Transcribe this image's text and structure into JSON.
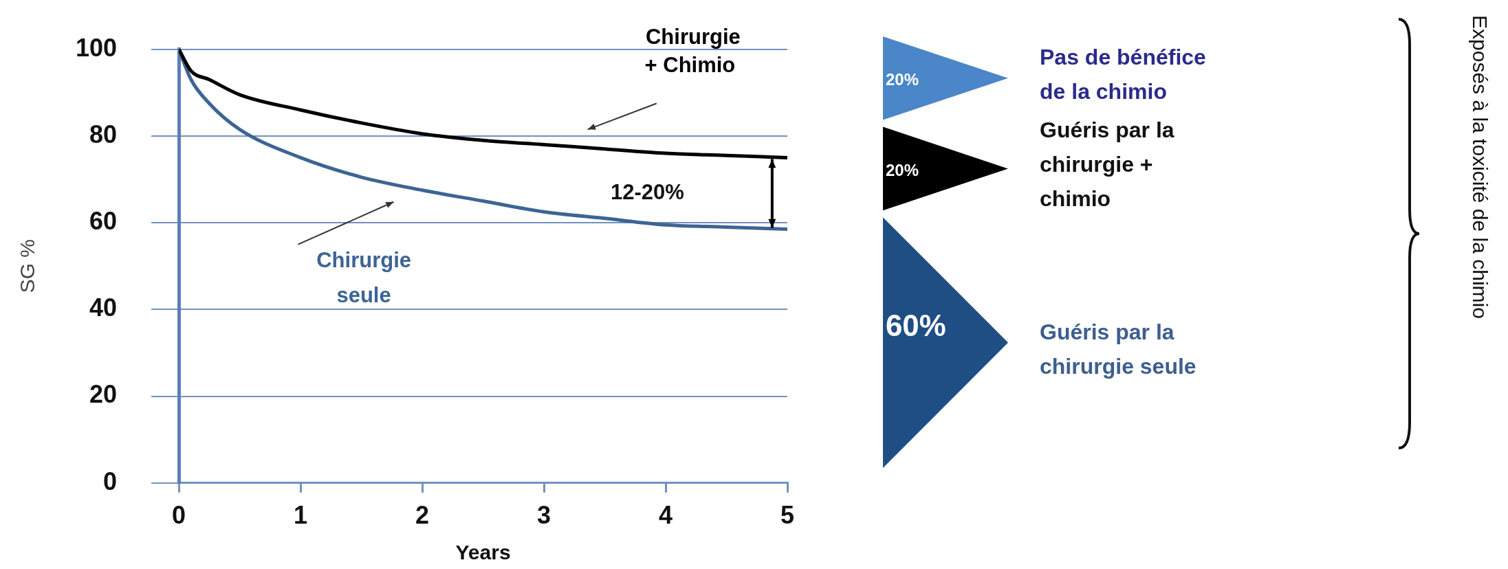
{
  "chart_data": [
    {
      "type": "line",
      "xlabel": "Years",
      "ylabel": "SG %",
      "x": [
        0,
        0.1,
        0.25,
        0.5,
        1,
        1.5,
        2,
        2.5,
        3,
        3.5,
        4,
        4.5,
        5
      ],
      "series": [
        {
          "name": "Chirurgie + Chimio",
          "color": "#000000",
          "values": [
            100,
            95,
            93,
            89.5,
            86,
            83,
            80.5,
            79,
            78,
            77,
            76,
            75.5,
            75
          ]
        },
        {
          "name": "Chirurgie seule",
          "color": "#3d6494",
          "values": [
            100,
            93,
            87.5,
            81.5,
            75,
            70.5,
            67.5,
            65,
            62.5,
            61,
            59.5,
            59,
            58.5
          ]
        }
      ],
      "xlim": [
        0,
        5
      ],
      "xticks": [
        0,
        1,
        2,
        3,
        4,
        5
      ],
      "ylim": [
        0,
        100
      ],
      "yticks": [
        0,
        20,
        40,
        60,
        80,
        100
      ],
      "grid": "y",
      "annotations": [
        "12-20%"
      ]
    },
    {
      "type": "other",
      "categories": [
        "Pas de bénéfice de la chimio",
        "Guéris par la chirurgie + chimio",
        "Guéris par la chirurgie seule"
      ],
      "values": [
        20,
        20,
        60
      ],
      "colors": [
        "#4a86c8",
        "#000000",
        "#1f4e85"
      ],
      "value_labels": [
        "20%",
        "20%",
        "60%"
      ],
      "annotations": [
        "Exposés à la toxicité de la chimio"
      ]
    }
  ]
}
